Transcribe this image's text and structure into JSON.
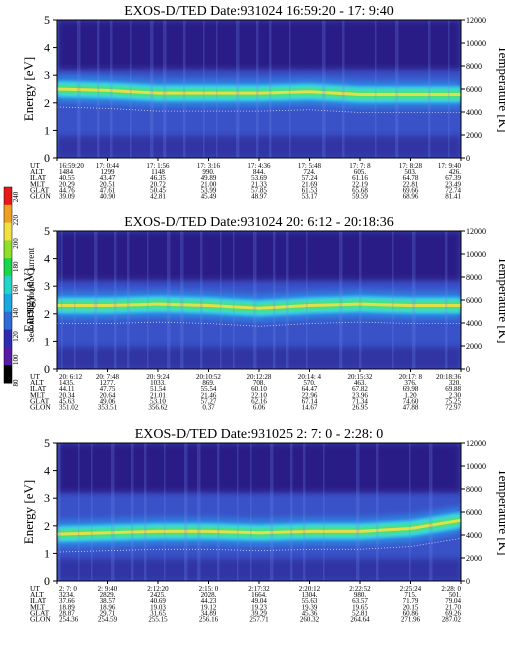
{
  "colors": {
    "bg_dark": "#2a1f86",
    "bg_blue": "#3a52c8",
    "band_cyan": "#38d8e8",
    "band_green": "#50e070",
    "band_yellow": "#f0e048"
  },
  "colorbar": {
    "label": "Second Harmonic Current",
    "ticks": [
      "80",
      "100",
      "120",
      "140",
      "160",
      "180",
      "200",
      "220",
      "240"
    ],
    "colors": [
      "#000000",
      "#5a1aa8",
      "#2d2db4",
      "#2f6cd8",
      "#16a8e0",
      "#20d6c8",
      "#18d84a",
      "#90e028",
      "#f0e040",
      "#f0a020",
      "#e81818"
    ]
  },
  "row_labels": [
    "UT",
    "ALT",
    "ILAT",
    "MLT",
    "GLAT",
    "GLON"
  ],
  "chart_data": [
    {
      "type": "heatmap",
      "title": "EXOS-D/TED   Date:931024  16:59:20 - 17: 9:40",
      "ylabel": "Energy [eV]",
      "y2label": "Temperature [K]",
      "ylim": [
        0,
        5
      ],
      "y2lim": [
        0,
        12000
      ],
      "yticks": [
        "0",
        "1",
        "2",
        "3",
        "4",
        "5"
      ],
      "y2ticks": [
        "0",
        "2000",
        "4000",
        "6000",
        "8000",
        "10000",
        "12000"
      ],
      "table": [
        [
          "16:59:20",
          "17: 0:44",
          "17: 1:56",
          "17: 3:16",
          "17: 4:36",
          "17: 5:48",
          "17: 7: 8",
          "17: 8:28",
          "17: 9:40"
        ],
        [
          "1484",
          "1299",
          "1148",
          "990.",
          "844.",
          "724.",
          "605.",
          "503.",
          "426."
        ],
        [
          "40.55",
          "43.47",
          "46.35",
          "49.89",
          "53.69",
          "57.24",
          "61.16",
          "64.78",
          "67.39"
        ],
        [
          "20.29",
          "20.51",
          "20.72",
          "21.00",
          "21.33",
          "21.69",
          "22.19",
          "22.81",
          "23.49"
        ],
        [
          "44.76",
          "47.61",
          "50.45",
          "53.99",
          "57.85",
          "61.53",
          "65.68",
          "69.66",
          "72.74"
        ],
        [
          "39.09",
          "40.90",
          "42.81",
          "45.49",
          "48.97",
          "53.17",
          "59.59",
          "68.96",
          "81.41"
        ]
      ],
      "band_energy": [
        2.5,
        2.45,
        2.35,
        2.35,
        2.35,
        2.4,
        2.3,
        2.3,
        2.3
      ]
    },
    {
      "type": "heatmap",
      "title": "EXOS-D/TED   Date:931024  20: 6:12 - 20:18:36",
      "ylabel": "Energy [eV]",
      "y2label": "Temperature [K]",
      "ylim": [
        0,
        5
      ],
      "y2lim": [
        0,
        12000
      ],
      "yticks": [
        "0",
        "1",
        "2",
        "3",
        "4",
        "5"
      ],
      "y2ticks": [
        "0",
        "2000",
        "4000",
        "6000",
        "8000",
        "10000",
        "12000"
      ],
      "table": [
        [
          "20: 6:12",
          "20: 7:48",
          "20: 9:24",
          "20:10:52",
          "20:12:28",
          "20:14: 4",
          "20:15:32",
          "20:17: 8",
          "20:18:36"
        ],
        [
          "1435.",
          "1277.",
          "1033.",
          "869.",
          "708.",
          "570.",
          "463.",
          "376.",
          "320."
        ],
        [
          "44.11",
          "47.75",
          "51.54",
          "55.54",
          "60.10",
          "64.47",
          "67.82",
          "69.98",
          "69.88"
        ],
        [
          "20.34",
          "20.64",
          "21.01",
          "21.46",
          "22.10",
          "22.96",
          "23.96",
          "1.20",
          "2.30"
        ],
        [
          "45.63",
          "49.06",
          "53.10",
          "57.27",
          "62.16",
          "67.14",
          "71.34",
          "74.60",
          "75.25"
        ],
        [
          "351.02",
          "353.51",
          "356.62",
          "0.37",
          "6.06",
          "14.67",
          "26.95",
          "47.88",
          "72.97"
        ]
      ],
      "band_energy": [
        2.3,
        2.3,
        2.35,
        2.3,
        2.2,
        2.3,
        2.35,
        2.3,
        2.3
      ]
    },
    {
      "type": "heatmap",
      "title": "EXOS-D/TED   Date:931025  2: 7: 0 - 2:28: 0",
      "ylabel": "Energy [eV]",
      "y2label": "Temperature [K]",
      "ylim": [
        0,
        5
      ],
      "y2lim": [
        0,
        12000
      ],
      "yticks": [
        "0",
        "1",
        "2",
        "3",
        "4",
        "5"
      ],
      "y2ticks": [
        "0",
        "2000",
        "4000",
        "6000",
        "8000",
        "10000",
        "12000"
      ],
      "table": [
        [
          "2: 7: 0",
          "2: 9:40",
          "2:12:20",
          "2:15: 0",
          "2:17:32",
          "2:20:12",
          "2:22:52",
          "2:25:24",
          "2:28: 0"
        ],
        [
          "3234.",
          "2829.",
          "2425.",
          "2028.",
          "1664.",
          "1304.",
          "980.",
          "715.",
          "501."
        ],
        [
          "37.66",
          "38.57",
          "40.69",
          "44.23",
          "49.04",
          "55.63",
          "63.57",
          "71.79",
          "79.04"
        ],
        [
          "18.89",
          "18.96",
          "19.03",
          "19.12",
          "19.23",
          "19.39",
          "19.65",
          "20.15",
          "21.70"
        ],
        [
          "28.87",
          "29.71",
          "31.65",
          "34.89",
          "39.29",
          "45.36",
          "52.81",
          "60.86",
          "69.26"
        ],
        [
          "254.36",
          "254.59",
          "255.15",
          "256.16",
          "257.71",
          "260.32",
          "264.64",
          "271.96",
          "287.02"
        ]
      ],
      "band_energy": [
        1.7,
        1.75,
        1.8,
        1.8,
        1.75,
        1.8,
        1.8,
        1.9,
        2.2
      ]
    }
  ]
}
